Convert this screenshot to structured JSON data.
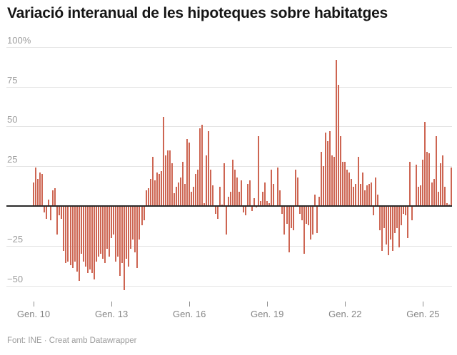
{
  "header": {
    "title": "Variació interanual de les hipoteques sobre habitatges"
  },
  "footer": {
    "attribution": "Font: INE · Creat amb Datawrapper"
  },
  "chart_data": {
    "type": "bar",
    "title": "Variació interanual de les hipoteques sobre habitatges",
    "unit": "%",
    "frequency": "monthly",
    "series_start_label": "Gen. 10",
    "bar_color": "#cd6552",
    "grid": "horizontal",
    "ylim": [
      -57,
      104
    ],
    "y_ticks": [
      {
        "value": 100,
        "label": "100%"
      },
      {
        "value": 75,
        "label": "75"
      },
      {
        "value": 50,
        "label": "50"
      },
      {
        "value": 25,
        "label": "25"
      },
      {
        "value": -25,
        "label": "−25"
      },
      {
        "value": -50,
        "label": "−50"
      }
    ],
    "x_ticks": [
      {
        "month_index": 0,
        "label": "Gen. 10"
      },
      {
        "month_index": 36,
        "label": "Gen. 13"
      },
      {
        "month_index": 72,
        "label": "Gen. 16"
      },
      {
        "month_index": 108,
        "label": "Gen. 19"
      },
      {
        "month_index": 144,
        "label": "Gen. 22"
      },
      {
        "month_index": 180,
        "label": "Gen. 25"
      }
    ],
    "values": [
      15,
      24,
      17,
      21,
      20,
      -4,
      -8,
      4,
      -9,
      10,
      11,
      -18,
      -6,
      -8,
      -28,
      -36,
      -35,
      -37,
      -39,
      -35,
      -41,
      -47,
      -30,
      -35,
      -38,
      -42,
      -40,
      -42,
      -46,
      -35,
      -32,
      -30,
      -33,
      -36,
      -27,
      -32,
      -20,
      -18,
      -35,
      -32,
      -44,
      -36,
      -53,
      -33,
      -38,
      -27,
      -21,
      -29,
      -39,
      -21,
      -12,
      -9,
      10,
      11,
      17,
      31,
      16,
      21,
      20,
      22,
      56,
      32,
      35,
      35,
      27,
      8,
      12,
      15,
      18,
      28,
      14,
      42,
      40,
      9,
      12,
      20,
      23,
      49,
      51,
      2,
      32,
      47,
      23,
      13,
      -5,
      -8,
      12,
      1,
      27,
      -18,
      6,
      9,
      29,
      23,
      18,
      9,
      16,
      -4,
      -6,
      14,
      16,
      -3,
      5,
      -1,
      44,
      3,
      9,
      15,
      3,
      2,
      23,
      14,
      0,
      24,
      10,
      -5,
      -18,
      -11,
      -29,
      -14,
      -15,
      23,
      18,
      -5,
      -9,
      -30,
      -11,
      -12,
      -21,
      -18,
      7,
      -17,
      6,
      34,
      25,
      46,
      41,
      47,
      32,
      31,
      92,
      76,
      44,
      28,
      28,
      23,
      21,
      17,
      12,
      14,
      31,
      14,
      21,
      10,
      13,
      14,
      15,
      -6,
      18,
      7,
      -15,
      -28,
      -14,
      -24,
      -31,
      -21,
      -28,
      -17,
      -14,
      -26,
      -12,
      -5,
      -6,
      -20,
      28,
      -9,
      0,
      26,
      12,
      13,
      29,
      53,
      34,
      33,
      15,
      17,
      44,
      9,
      27,
      32,
      12,
      2,
      1,
      24
    ]
  }
}
